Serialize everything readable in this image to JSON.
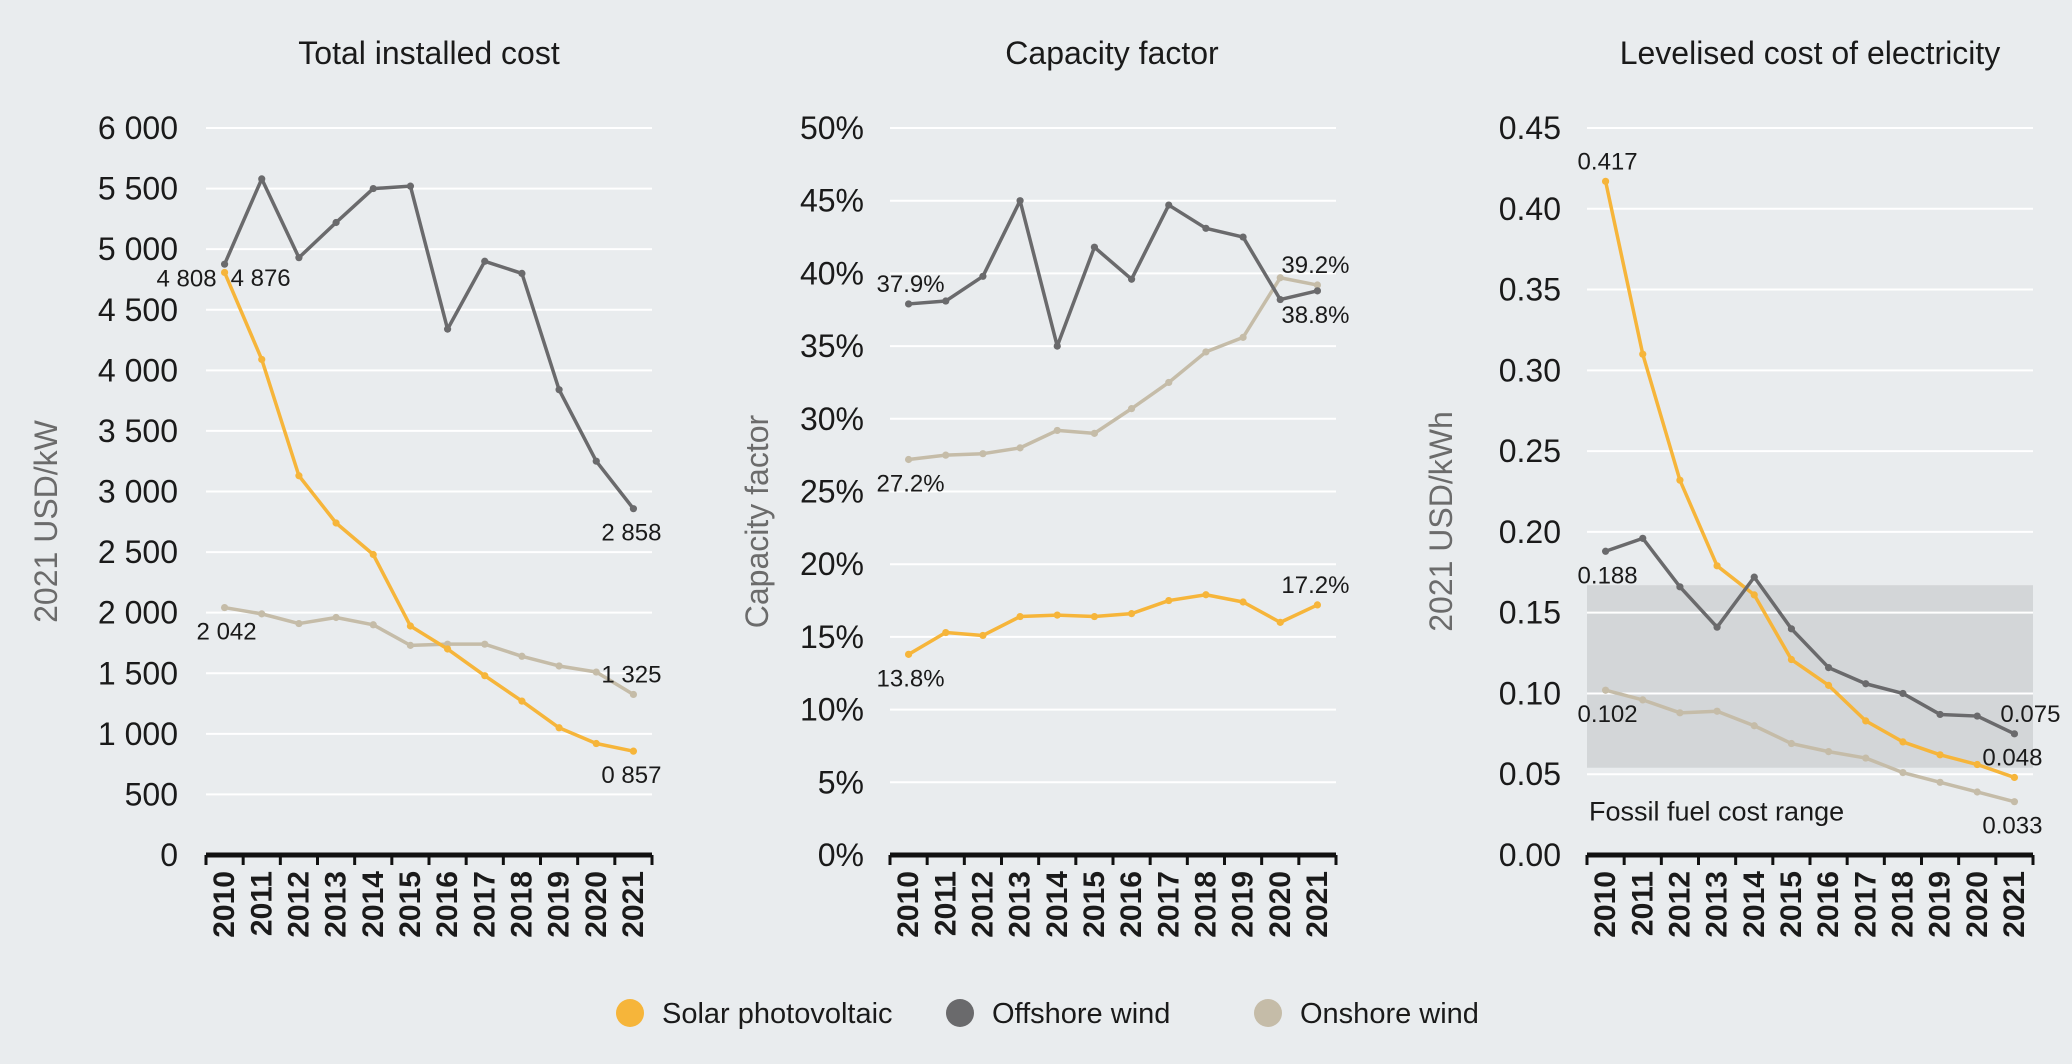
{
  "colors": {
    "solar": "#f6b53a",
    "offshore": "#6a6a6c",
    "onshore": "#c5bca8",
    "grid": "#ffffff",
    "band": "#d3d6d8",
    "axis": "#111111"
  },
  "legend": [
    {
      "name": "Solar photovoltaic",
      "color": "#f6b53a"
    },
    {
      "name": "Offshore wind",
      "color": "#6a6a6c"
    },
    {
      "name": "Onshore wind",
      "color": "#c5bca8"
    }
  ],
  "chart_data": [
    {
      "type": "line",
      "title": "Total installed cost",
      "ylabel": "2021 USD/kW",
      "xlabel": "",
      "x": [
        "2010",
        "2011",
        "2012",
        "2013",
        "2014",
        "2015",
        "2016",
        "2017",
        "2018",
        "2019",
        "2020",
        "2021"
      ],
      "ylim": [
        0,
        6000
      ],
      "yticks": [
        0,
        500,
        1000,
        1500,
        2000,
        2500,
        3000,
        3500,
        4000,
        4500,
        5000,
        5500,
        6000
      ],
      "ytick_labels": [
        "0",
        "500",
        "1 000",
        "1 500",
        "2 000",
        "2 500",
        "3 000",
        "3 500",
        "4 000",
        "4 500",
        "5 000",
        "5 500",
        "6 000"
      ],
      "series": [
        {
          "name": "Solar photovoltaic",
          "key": "solar",
          "values": [
            4808,
            4090,
            3130,
            2740,
            2480,
            1890,
            1700,
            1480,
            1270,
            1050,
            920,
            857
          ]
        },
        {
          "name": "Offshore wind",
          "key": "offshore",
          "values": [
            4876,
            5580,
            4930,
            5220,
            5500,
            5520,
            4340,
            4900,
            4800,
            3840,
            3250,
            2858
          ]
        },
        {
          "name": "Onshore wind",
          "key": "onshore",
          "values": [
            2042,
            1990,
            1910,
            1960,
            1900,
            1730,
            1740,
            1740,
            1640,
            1560,
            1510,
            1325
          ]
        }
      ],
      "data_labels": [
        {
          "text": "4 808",
          "series": "solar",
          "index": 0,
          "pos": "left"
        },
        {
          "text": "4 876",
          "series": "offshore",
          "index": 0,
          "pos": "right"
        },
        {
          "text": "2 858",
          "series": "offshore",
          "index": 11,
          "pos": "below"
        },
        {
          "text": "2 042",
          "series": "onshore",
          "index": 0,
          "pos": "below"
        },
        {
          "text": "1 325",
          "series": "onshore",
          "index": 11,
          "pos": "above"
        },
        {
          "text": "0 857",
          "series": "solar",
          "index": 11,
          "pos": "below"
        }
      ]
    },
    {
      "type": "line",
      "title": "Capacity factor",
      "ylabel": "Capacity factor",
      "xlabel": "",
      "x": [
        "2010",
        "2011",
        "2012",
        "2013",
        "2014",
        "2015",
        "2016",
        "2017",
        "2018",
        "2019",
        "2020",
        "2021"
      ],
      "ylim": [
        0,
        50
      ],
      "yticks": [
        0,
        5,
        10,
        15,
        20,
        25,
        30,
        35,
        40,
        45,
        50
      ],
      "ytick_labels": [
        "0%",
        "5%",
        "10%",
        "15%",
        "20%",
        "25%",
        "30%",
        "35%",
        "40%",
        "45%",
        "50%"
      ],
      "series": [
        {
          "name": "Solar photovoltaic",
          "key": "solar",
          "values": [
            13.8,
            15.3,
            15.1,
            16.4,
            16.5,
            16.4,
            16.6,
            17.5,
            17.9,
            17.4,
            16.0,
            17.2
          ]
        },
        {
          "name": "Offshore wind",
          "key": "offshore",
          "values": [
            37.9,
            38.1,
            39.8,
            45.0,
            35.0,
            41.8,
            39.6,
            44.7,
            43.1,
            42.5,
            38.2,
            38.8
          ]
        },
        {
          "name": "Onshore wind",
          "key": "onshore",
          "values": [
            27.2,
            27.5,
            27.6,
            28.0,
            29.2,
            29.0,
            30.7,
            32.5,
            34.6,
            35.6,
            39.7,
            39.2
          ]
        }
      ],
      "data_labels": [
        {
          "text": "37.9%",
          "series": "offshore",
          "index": 0,
          "pos": "above"
        },
        {
          "text": "27.2%",
          "series": "onshore",
          "index": 0,
          "pos": "below"
        },
        {
          "text": "13.8%",
          "series": "solar",
          "index": 0,
          "pos": "below"
        },
        {
          "text": "39.2%",
          "series": "onshore",
          "index": 11,
          "pos": "above"
        },
        {
          "text": "38.8%",
          "series": "offshore",
          "index": 11,
          "pos": "below"
        },
        {
          "text": "17.2%",
          "series": "solar",
          "index": 11,
          "pos": "above"
        }
      ]
    },
    {
      "type": "line",
      "title": "Levelised cost of electricity",
      "ylabel": "2021 USD/kWh",
      "xlabel": "",
      "x": [
        "2010",
        "2011",
        "2012",
        "2013",
        "2014",
        "2015",
        "2016",
        "2017",
        "2018",
        "2019",
        "2020",
        "2021"
      ],
      "ylim": [
        0,
        0.45
      ],
      "yticks": [
        0,
        0.05,
        0.1,
        0.15,
        0.2,
        0.25,
        0.3,
        0.35,
        0.4,
        0.45
      ],
      "ytick_labels": [
        "0.00",
        "0.05",
        "0.10",
        "0.15",
        "0.20",
        "0.25",
        "0.30",
        "0.35",
        "0.40",
        "0.45"
      ],
      "band": {
        "from": 0.054,
        "to": 0.167,
        "label": "Fossil fuel cost range"
      },
      "series": [
        {
          "name": "Solar photovoltaic",
          "key": "solar",
          "values": [
            0.417,
            0.31,
            0.232,
            0.179,
            0.161,
            0.121,
            0.105,
            0.083,
            0.07,
            0.062,
            0.056,
            0.048
          ]
        },
        {
          "name": "Offshore wind",
          "key": "offshore",
          "values": [
            0.188,
            0.196,
            0.166,
            0.141,
            0.172,
            0.14,
            0.116,
            0.106,
            0.1,
            0.087,
            0.086,
            0.075
          ]
        },
        {
          "name": "Onshore wind",
          "key": "onshore",
          "values": [
            0.102,
            0.096,
            0.088,
            0.089,
            0.08,
            0.069,
            0.064,
            0.06,
            0.051,
            0.045,
            0.039,
            0.033
          ]
        }
      ],
      "data_labels": [
        {
          "text": "0.417",
          "series": "solar",
          "index": 0,
          "pos": "above"
        },
        {
          "text": "0.188",
          "series": "offshore",
          "index": 0,
          "pos": "below"
        },
        {
          "text": "0.102",
          "series": "onshore",
          "index": 0,
          "pos": "below"
        },
        {
          "text": "0.075",
          "series": "offshore",
          "index": 11,
          "pos": "aboveright"
        },
        {
          "text": "0.048",
          "series": "solar",
          "index": 11,
          "pos": "above"
        },
        {
          "text": "0.033",
          "series": "onshore",
          "index": 11,
          "pos": "below"
        }
      ]
    }
  ]
}
